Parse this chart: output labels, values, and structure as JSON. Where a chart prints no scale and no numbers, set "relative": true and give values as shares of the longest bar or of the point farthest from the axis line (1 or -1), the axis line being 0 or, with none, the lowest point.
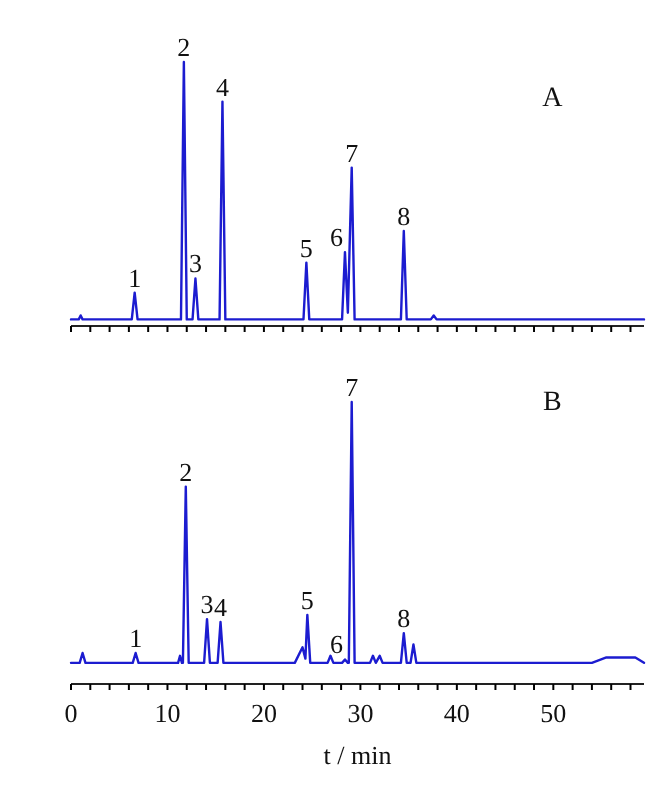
{
  "chart_data": [
    {
      "type": "line",
      "title": "A",
      "relative": true,
      "tick_labels": false,
      "xlim": [
        0,
        59.4
      ],
      "xticks": [
        {
          "value": 0,
          "label": null
        },
        {
          "value": 2,
          "label": null
        },
        {
          "value": 4,
          "label": null
        },
        {
          "value": 6,
          "label": null
        },
        {
          "value": 8,
          "label": null
        },
        {
          "value": 10,
          "label": null
        },
        {
          "value": 12,
          "label": null
        },
        {
          "value": 14,
          "label": null
        },
        {
          "value": 16,
          "label": null
        },
        {
          "value": 18,
          "label": null
        },
        {
          "value": 20,
          "label": null
        },
        {
          "value": 22,
          "label": null
        },
        {
          "value": 24,
          "label": null
        },
        {
          "value": 26,
          "label": null
        },
        {
          "value": 28,
          "label": null
        },
        {
          "value": 30,
          "label": null
        },
        {
          "value": 32,
          "label": null
        },
        {
          "value": 34,
          "label": null
        },
        {
          "value": 36,
          "label": null
        },
        {
          "value": 38,
          "label": null
        },
        {
          "value": 40,
          "label": null
        },
        {
          "value": 42,
          "label": null
        },
        {
          "value": 44,
          "label": null
        },
        {
          "value": 46,
          "label": null
        },
        {
          "value": 48,
          "label": null
        },
        {
          "value": 50,
          "label": null
        },
        {
          "value": 52,
          "label": null
        },
        {
          "value": 54,
          "label": null
        },
        {
          "value": 56,
          "label": null
        },
        {
          "value": 58,
          "label": null
        }
      ],
      "series": [
        {
          "color": "#1c1cd0",
          "x": [
            0,
            0.8,
            1.0,
            1.2,
            6.3,
            6.6,
            6.9,
            11.4,
            11.7,
            12.0,
            12.6,
            12.9,
            13.2,
            15.4,
            15.7,
            16.0,
            24.1,
            24.4,
            24.7,
            28.1,
            28.4,
            28.7,
            29.1,
            29.4,
            34.2,
            34.5,
            34.8,
            37.3,
            37.6,
            37.9,
            59.4
          ],
          "values": [
            0.025,
            0.025,
            0.04,
            0.025,
            0.025,
            0.126,
            0.025,
            0.025,
            1,
            0.025,
            0.025,
            0.18,
            0.025,
            0.025,
            0.85,
            0.025,
            0.025,
            0.24,
            0.025,
            0.025,
            0.28,
            0.05,
            0.6,
            0.025,
            0.025,
            0.36,
            0.025,
            0.025,
            0.04,
            0.025,
            0.025
          ]
        }
      ],
      "annotations": [
        {
          "text": "1",
          "x": 6.6,
          "y": 0.126
        },
        {
          "text": "2",
          "x": 11.7,
          "y": 1
        },
        {
          "text": "3",
          "x": 12.9,
          "y": 0.18
        },
        {
          "text": "4",
          "x": 15.7,
          "y": 0.85
        },
        {
          "text": "5",
          "x": 24.4,
          "y": 0.24
        },
        {
          "text": "6",
          "x": 28.4,
          "y": 0.28
        },
        {
          "text": "7",
          "x": 29.1,
          "y": 0.6
        },
        {
          "text": "8",
          "x": 34.5,
          "y": 0.36
        }
      ]
    },
    {
      "type": "line",
      "title": "B",
      "relative": true,
      "tick_labels": "x",
      "xlim": [
        0,
        59.4
      ],
      "xlabel": "t / min",
      "xticks": [
        0,
        {
          "value": 2,
          "label": null
        },
        {
          "value": 4,
          "label": null
        },
        {
          "value": 6,
          "label": null
        },
        {
          "value": 8,
          "label": null
        },
        10,
        {
          "value": 12,
          "label": null
        },
        {
          "value": 14,
          "label": null
        },
        {
          "value": 16,
          "label": null
        },
        {
          "value": 18,
          "label": null
        },
        20,
        {
          "value": 22,
          "label": null
        },
        {
          "value": 24,
          "label": null
        },
        {
          "value": 26,
          "label": null
        },
        {
          "value": 28,
          "label": null
        },
        30,
        {
          "value": 32,
          "label": null
        },
        {
          "value": 34,
          "label": null
        },
        {
          "value": 36,
          "label": null
        },
        {
          "value": 38,
          "label": null
        },
        40,
        {
          "value": 42,
          "label": null
        },
        {
          "value": 44,
          "label": null
        },
        {
          "value": 46,
          "label": null
        },
        {
          "value": 48,
          "label": null
        },
        50,
        {
          "value": 52,
          "label": null
        },
        {
          "value": 54,
          "label": null
        },
        {
          "value": 56,
          "label": null
        },
        {
          "value": 58,
          "label": null
        }
      ],
      "series": [
        {
          "color": "#1c1cd0",
          "x": [
            0,
            0.9,
            1.2,
            1.5,
            6.4,
            6.7,
            7.0,
            11.1,
            11.3,
            11.5,
            11.6,
            11.9,
            12.2,
            13.8,
            14.1,
            14.4,
            15.2,
            15.5,
            15.8,
            23.2,
            24.0,
            24.3,
            24.5,
            24.8,
            26.6,
            26.9,
            27.2,
            28.1,
            28.4,
            28.7,
            28.8,
            29.1,
            29.4,
            31.0,
            31.3,
            31.6,
            32.0,
            32.3,
            34.2,
            34.5,
            34.8,
            35.2,
            35.5,
            35.8,
            54,
            55.5,
            58.5,
            59.4
          ],
          "values": [
            0.075,
            0.075,
            0.11,
            0.075,
            0.075,
            0.11,
            0.075,
            0.075,
            0.1,
            0.075,
            0.075,
            0.7,
            0.075,
            0.075,
            0.23,
            0.075,
            0.075,
            0.22,
            0.075,
            0.075,
            0.13,
            0.09,
            0.245,
            0.075,
            0.075,
            0.1,
            0.075,
            0.075,
            0.087,
            0.075,
            0.075,
            1,
            0.075,
            0.075,
            0.1,
            0.075,
            0.1,
            0.075,
            0.075,
            0.18,
            0.075,
            0.075,
            0.14,
            0.075,
            0.075,
            0.094,
            0.094,
            0.075
          ]
        }
      ],
      "annotations": [
        {
          "text": "1",
          "x": 6.7,
          "y": 0.11
        },
        {
          "text": "2",
          "x": 11.9,
          "y": 0.7
        },
        {
          "text": "3",
          "x": 14.1,
          "y": 0.23
        },
        {
          "text": "4",
          "x": 15.5,
          "y": 0.22
        },
        {
          "text": "5",
          "x": 24.5,
          "y": 0.245
        },
        {
          "text": "6",
          "x": 28.4,
          "y": 0.087
        },
        {
          "text": "7",
          "x": 29.1,
          "y": 1
        },
        {
          "text": "8",
          "x": 34.5,
          "y": 0.18
        }
      ]
    }
  ]
}
